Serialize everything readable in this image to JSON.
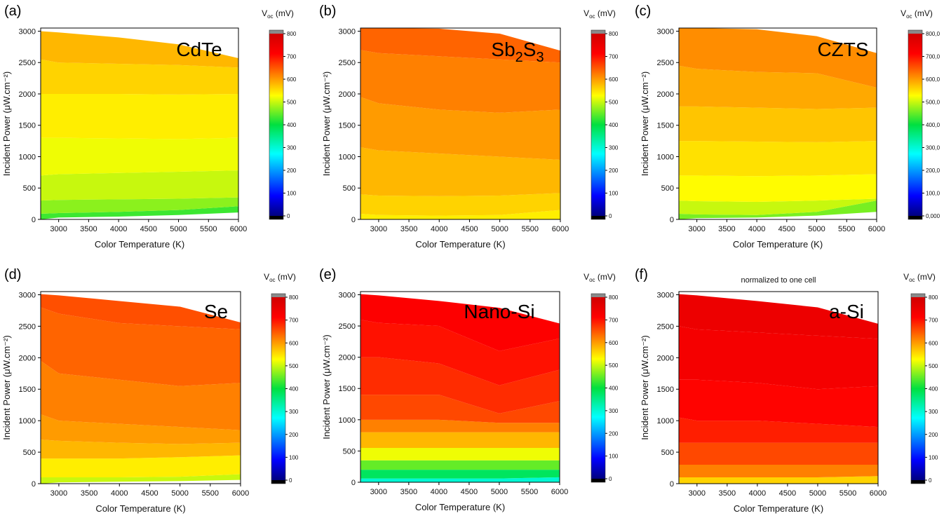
{
  "figure": {
    "colorbar_title": "V",
    "colorbar_subscript": "oc",
    "colorbar_unit": " (mV)"
  },
  "chart_data": [
    {
      "type": "heatmap",
      "panel": "(a)",
      "label": "CdTe",
      "label_sub": "",
      "xlabel": "Color Temperature (K)",
      "ylabel": "Incident Power (μW.cm⁻²)",
      "xlim": [
        2700,
        6000
      ],
      "ylim": [
        0,
        3050
      ],
      "x_ticks": [
        "3000",
        "3500",
        "4000",
        "4500",
        "5000",
        "5500",
        "6000"
      ],
      "y_ticks": [
        "0",
        "500",
        "1000",
        "1500",
        "2000",
        "2500",
        "3000"
      ],
      "max_power_curve": {
        "color_temperature": [
          2700,
          3000,
          4000,
          5000,
          6000
        ],
        "power": [
          3000,
          2980,
          2900,
          2790,
          2570
        ]
      },
      "bands": [
        {
          "power": [
            0,
            30,
            45,
            70,
            110
          ],
          "voc": 430
        },
        {
          "power": [
            90,
            100,
            120,
            150,
            210
          ],
          "voc": 470
        },
        {
          "power": [
            300,
            310,
            320,
            330,
            350
          ],
          "voc": 500
        },
        {
          "power": [
            700,
            720,
            740,
            760,
            780
          ],
          "voc": 520
        },
        {
          "power": [
            1300,
            1300,
            1290,
            1280,
            1300
          ],
          "voc": 540
        },
        {
          "power": [
            2000,
            2000,
            2000,
            1990,
            2000
          ],
          "voc": 560
        },
        {
          "power": [
            2550,
            2500,
            2480,
            2460,
            2420
          ],
          "voc": 580
        }
      ],
      "colorbar": {
        "ticks": [
          "0",
          "100",
          "200",
          "300",
          "400",
          "500",
          "600",
          "700",
          "800"
        ],
        "range": [
          0,
          800
        ]
      }
    },
    {
      "type": "heatmap",
      "panel": "(b)",
      "label": "Sb",
      "label_sub": [
        "2",
        "3"
      ],
      "xlabel": "Color Temperature (K)",
      "ylabel": "Incident Power (μW.cm⁻²)",
      "xlim": [
        2700,
        6000
      ],
      "ylim": [
        0,
        3050
      ],
      "x_ticks": [
        "3000",
        "3500",
        "4000",
        "4500",
        "5000",
        "5500",
        "6000"
      ],
      "y_ticks": [
        "0",
        "500",
        "1000",
        "1500",
        "2000",
        "2500",
        "3000"
      ],
      "max_power_curve": {
        "color_temperature": [
          2700,
          3000,
          4000,
          5000,
          6000
        ],
        "power": [
          3050,
          3050,
          3040,
          2960,
          2690
        ]
      },
      "bands": [
        {
          "power": [
            0,
            0,
            0,
            0,
            0
          ],
          "voc": 540
        },
        {
          "power": [
            90,
            70,
            60,
            70,
            150
          ],
          "voc": 560
        },
        {
          "power": [
            400,
            380,
            370,
            380,
            420
          ],
          "voc": 580
        },
        {
          "power": [
            1150,
            1100,
            1050,
            1000,
            950
          ],
          "voc": 600
        },
        {
          "power": [
            1950,
            1850,
            1750,
            1700,
            1750
          ],
          "voc": 620
        },
        {
          "power": [
            2700,
            2650,
            2600,
            2550,
            2500
          ],
          "voc": 640
        }
      ],
      "colorbar": {
        "ticks": [
          "0",
          "100",
          "200",
          "300",
          "400",
          "500",
          "600",
          "700",
          "800"
        ],
        "range": [
          0,
          800
        ]
      }
    },
    {
      "type": "heatmap",
      "panel": "(c)",
      "label": "CZTS",
      "label_sub": "",
      "xlabel": "Color Temperature (K)",
      "ylabel": "Incident Power (μW.cm⁻²)",
      "xlim": [
        2700,
        6000
      ],
      "ylim": [
        0,
        3050
      ],
      "x_ticks": [
        "3000",
        "3500",
        "4000",
        "4500",
        "5000",
        "5500",
        "6000"
      ],
      "y_ticks": [
        "0",
        "500",
        "1000",
        "1500",
        "2000",
        "2500",
        "3000"
      ],
      "max_power_curve": {
        "color_temperature": [
          2700,
          3000,
          4000,
          5000,
          6000
        ],
        "power": [
          3050,
          3050,
          3030,
          2920,
          2650
        ]
      },
      "bands": [
        {
          "power": [
            0,
            20,
            30,
            60,
            120
          ],
          "voc": 460
        },
        {
          "power": [
            90,
            80,
            70,
            120,
            300
          ],
          "voc": 500
        },
        {
          "power": [
            300,
            290,
            280,
            300,
            330
          ],
          "voc": 530
        },
        {
          "power": [
            700,
            700,
            690,
            700,
            720
          ],
          "voc": 550
        },
        {
          "power": [
            1250,
            1250,
            1240,
            1230,
            1250
          ],
          "voc": 570
        },
        {
          "power": [
            1800,
            1800,
            1780,
            1760,
            1780
          ],
          "voc": 590
        },
        {
          "power": [
            2450,
            2400,
            2350,
            2330,
            2100
          ],
          "voc": 610
        }
      ],
      "colorbar": {
        "ticks": [
          "0,000",
          "100,0",
          "200,0",
          "300,0",
          "400,0",
          "500,0",
          "600,0",
          "700,0",
          "800,0"
        ],
        "range": [
          0,
          800
        ]
      }
    },
    {
      "type": "heatmap",
      "panel": "(d)",
      "label": "Se",
      "label_sub": "",
      "xlabel": "Color Temperature (K)",
      "ylabel": "Incident Power (μW.cm⁻²)",
      "xlim": [
        2700,
        6000
      ],
      "ylim": [
        0,
        3050
      ],
      "x_ticks": [
        "3000",
        "3500",
        "4000",
        "4500",
        "5000",
        "5500",
        "6000"
      ],
      "y_ticks": [
        "0",
        "500",
        "1000",
        "1500",
        "2000",
        "2500",
        "3000"
      ],
      "max_power_curve": {
        "color_temperature": [
          2700,
          3000,
          4000,
          5000,
          6000
        ],
        "power": [
          3010,
          2990,
          2900,
          2810,
          2560
        ]
      },
      "bands": [
        {
          "power": [
            0,
            20,
            30,
            40,
            60
          ],
          "voc": 500
        },
        {
          "power": [
            100,
            100,
            100,
            110,
            150
          ],
          "voc": 540
        },
        {
          "power": [
            400,
            400,
            400,
            420,
            450
          ],
          "voc": 580
        },
        {
          "power": [
            700,
            680,
            650,
            630,
            650
          ],
          "voc": 600
        },
        {
          "power": [
            1100,
            1000,
            950,
            900,
            850
          ],
          "voc": 620
        },
        {
          "power": [
            1950,
            1750,
            1650,
            1550,
            1600
          ],
          "voc": 640
        },
        {
          "power": [
            2800,
            2700,
            2550,
            2500,
            2450
          ],
          "voc": 655
        }
      ],
      "colorbar": {
        "ticks": [
          "0",
          "100",
          "200",
          "300",
          "400",
          "500",
          "600",
          "700",
          "800"
        ],
        "range": [
          0,
          800
        ]
      }
    },
    {
      "type": "heatmap",
      "panel": "(e)",
      "label": "Nano-Si",
      "label_sub": "",
      "xlabel": "Color Temperature (K)",
      "ylabel": "Incident Power (μW.cm⁻²)",
      "xlim": [
        2700,
        6000
      ],
      "ylim": [
        0,
        3050
      ],
      "x_ticks": [
        "3000",
        "3500",
        "4000",
        "4500",
        "5000",
        "5500",
        "6000"
      ],
      "y_ticks": [
        "0",
        "500",
        "1000",
        "1500",
        "2000",
        "2500",
        "3000"
      ],
      "max_power_curve": {
        "color_temperature": [
          2700,
          3000,
          4000,
          5000,
          6000
        ],
        "power": [
          3010,
          2990,
          2900,
          2790,
          2540
        ]
      },
      "bands": [
        {
          "power": [
            0,
            0,
            0,
            0,
            0
          ],
          "voc": 300
        },
        {
          "power": [
            60,
            60,
            60,
            60,
            80
          ],
          "voc": 380
        },
        {
          "power": [
            200,
            200,
            200,
            200,
            200
          ],
          "voc": 450
        },
        {
          "power": [
            350,
            350,
            350,
            350,
            350
          ],
          "voc": 520
        },
        {
          "power": [
            550,
            550,
            550,
            550,
            550
          ],
          "voc": 580
        },
        {
          "power": [
            800,
            800,
            800,
            800,
            800
          ],
          "voc": 620
        },
        {
          "power": [
            1000,
            1000,
            1000,
            950,
            950
          ],
          "voc": 660
        },
        {
          "power": [
            1400,
            1400,
            1400,
            1100,
            1300
          ],
          "voc": 680
        },
        {
          "power": [
            2000,
            2000,
            1900,
            1550,
            1800
          ],
          "voc": 700
        },
        {
          "power": [
            2600,
            2550,
            2500,
            2100,
            2300
          ],
          "voc": 715
        }
      ],
      "colorbar": {
        "ticks": [
          "0",
          "100",
          "200",
          "300",
          "400",
          "500",
          "600",
          "700",
          "800"
        ],
        "range": [
          0,
          800
        ]
      }
    },
    {
      "type": "heatmap",
      "panel": "(f)",
      "label": "a-Si",
      "label_sub": "",
      "note": "normalized to one cell",
      "xlabel": "Color Temperature (K)",
      "ylabel": "Incident Power (μW.cm⁻²)",
      "xlim": [
        2700,
        6000
      ],
      "ylim": [
        0,
        3050
      ],
      "x_ticks": [
        "3000",
        "3500",
        "4000",
        "4500",
        "5000",
        "5500",
        "6000"
      ],
      "y_ticks": [
        "0",
        "500",
        "1000",
        "1500",
        "2000",
        "2500",
        "3000"
      ],
      "max_power_curve": {
        "color_temperature": [
          2700,
          3000,
          4000,
          5000,
          6000
        ],
        "power": [
          3010,
          2990,
          2900,
          2800,
          2540
        ]
      },
      "bands": [
        {
          "power": [
            0,
            0,
            0,
            0,
            0
          ],
          "voc": 560
        },
        {
          "power": [
            100,
            100,
            100,
            100,
            120
          ],
          "voc": 620
        },
        {
          "power": [
            300,
            300,
            300,
            300,
            300
          ],
          "voc": 660
        },
        {
          "power": [
            650,
            650,
            650,
            650,
            650
          ],
          "voc": 690
        },
        {
          "power": [
            1050,
            1000,
            1000,
            950,
            900
          ],
          "voc": 710
        },
        {
          "power": [
            1650,
            1650,
            1600,
            1500,
            1550
          ],
          "voc": 730
        },
        {
          "power": [
            2500,
            2450,
            2400,
            2350,
            2300
          ],
          "voc": 745
        }
      ],
      "colorbar": {
        "ticks": [
          "0",
          "100",
          "200",
          "300",
          "400",
          "500",
          "600",
          "700",
          "800"
        ],
        "range": [
          0,
          800
        ]
      }
    }
  ]
}
